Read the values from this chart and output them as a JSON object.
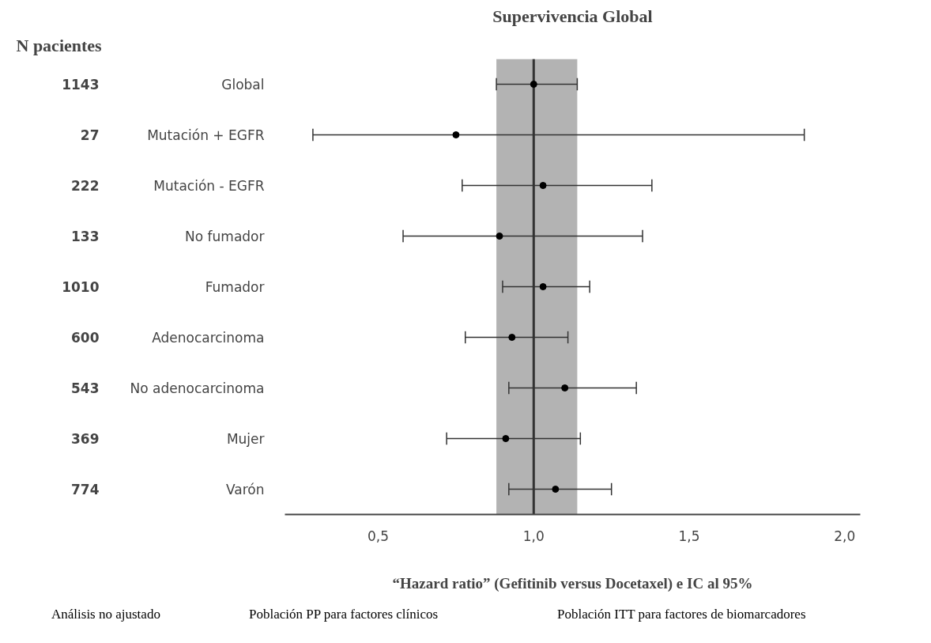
{
  "chart_data": {
    "type": "scatter",
    "orientation": "horizontal",
    "title": "Supervivencia Global",
    "ylabel": "N pacientes",
    "xlabel": "“Hazard ratio” (Gefitinib versus Docetaxel) e IC al 95%",
    "categories": [
      "Global",
      "Mutación + EGFR",
      "Mutación - EGFR",
      "No fumador",
      "Fumador",
      "Adenocarcinoma",
      "No adenocarcinoma",
      "Mujer",
      "Varón"
    ],
    "values": [
      1.0,
      0.75,
      1.03,
      0.89,
      1.03,
      0.93,
      1.1,
      0.91,
      1.07
    ],
    "errors": [
      [
        0.88,
        1.14
      ],
      [
        0.29,
        1.87
      ],
      [
        0.77,
        1.38
      ],
      [
        0.58,
        1.35
      ],
      [
        0.9,
        1.18
      ],
      [
        0.78,
        1.11
      ],
      [
        0.92,
        1.33
      ],
      [
        0.72,
        1.15
      ],
      [
        0.92,
        1.25
      ]
    ],
    "color": "#000000",
    "marker": "circle",
    "xlim": [
      0.2,
      2.05
    ],
    "xticks": [
      {
        "value": 0.5,
        "label": "0,5"
      },
      {
        "value": 1.0,
        "label": "1,0"
      },
      {
        "value": 1.5,
        "label": "1,5"
      },
      {
        "value": 2.0,
        "label": "2,0"
      }
    ],
    "bands": [
      {
        "axis": "x",
        "from": 0.88,
        "to": 1.14,
        "color": "#b3b3b3"
      }
    ],
    "ref_lines": [
      {
        "axis": "x",
        "value": 1.0,
        "color": "#333333"
      }
    ],
    "annotations": [
      "1143",
      "27",
      "222",
      "133",
      "1010",
      "600",
      "543",
      "369",
      "774",
      "Análisis no ajustado",
      "Población PP para factores clínicos",
      "Población ITT para factores de biomarcadores"
    ],
    "grid": false
  }
}
